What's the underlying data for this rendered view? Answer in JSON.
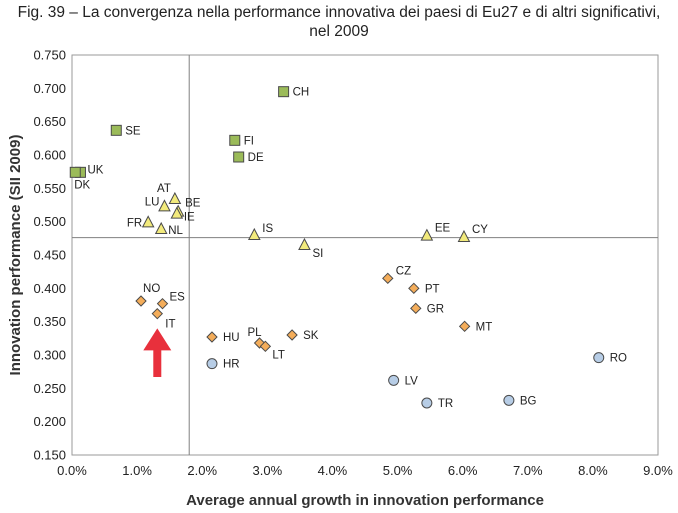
{
  "caption": {
    "line1": "Fig. 39 – La convergenza nella performance innovativa dei paesi di Eu27 e di altri significativi,",
    "line2": "nel 2009"
  },
  "chart_data": {
    "type": "scatter",
    "title": "Fig. 39 – La convergenza nella performance innovativa dei paesi di Eu27 e di altri significativi, nel 2009",
    "xlabel": "Average annual growth in innovation performance",
    "ylabel": "Innovation performance (SII 2009)",
    "xlim": [
      0,
      0.09
    ],
    "ylim": [
      0.15,
      0.75
    ],
    "x_ticks": [
      0,
      0.01,
      0.02,
      0.03,
      0.04,
      0.05,
      0.06,
      0.07,
      0.08,
      0.09
    ],
    "x_tick_labels": [
      "0.0%",
      "1.0%",
      "2.0%",
      "3.0%",
      "4.0%",
      "5.0%",
      "6.0%",
      "7.0%",
      "8.0%",
      "9.0%"
    ],
    "y_ticks": [
      0.15,
      0.2,
      0.25,
      0.3,
      0.35,
      0.4,
      0.45,
      0.5,
      0.55,
      0.6,
      0.65,
      0.7,
      0.75
    ],
    "y_tick_labels": [
      "0.150",
      "0.200",
      "0.250",
      "0.300",
      "0.350",
      "0.400",
      "0.450",
      "0.500",
      "0.550",
      "0.600",
      "0.650",
      "0.700",
      "0.750"
    ],
    "reference_lines": {
      "x": 0.018,
      "y": 0.476
    },
    "grid": false,
    "legend": "none",
    "arrow_annotation": {
      "x": 0.0131,
      "y_from": 0.267,
      "y_to": 0.34,
      "color": "#e8303c"
    },
    "groups": [
      {
        "marker": "square",
        "color": "#9bbb59",
        "points": [
          {
            "label": "CH",
            "x": 0.0325,
            "y": 0.695
          },
          {
            "label": "SE",
            "x": 0.0068,
            "y": 0.637
          },
          {
            "label": "FI",
            "x": 0.025,
            "y": 0.622
          },
          {
            "label": "DE",
            "x": 0.0256,
            "y": 0.597
          },
          {
            "label": "UK",
            "x": 0.0013,
            "y": 0.574
          },
          {
            "label": "DK",
            "x": 0.0005,
            "y": 0.574
          }
        ]
      },
      {
        "marker": "triangle",
        "color": "#f2ea7c",
        "points": [
          {
            "label": "AT",
            "x": 0.0158,
            "y": 0.534
          },
          {
            "label": "LU",
            "x": 0.0142,
            "y": 0.523
          },
          {
            "label": "BE",
            "x": 0.0163,
            "y": 0.515
          },
          {
            "label": "IE",
            "x": 0.0161,
            "y": 0.512
          },
          {
            "label": "FR",
            "x": 0.0117,
            "y": 0.499
          },
          {
            "label": "NL",
            "x": 0.0137,
            "y": 0.489
          },
          {
            "label": "IS",
            "x": 0.028,
            "y": 0.48
          },
          {
            "label": "SI",
            "x": 0.0357,
            "y": 0.465
          },
          {
            "label": "EE",
            "x": 0.0545,
            "y": 0.479
          },
          {
            "label": "CY",
            "x": 0.0602,
            "y": 0.477
          }
        ]
      },
      {
        "marker": "diamond",
        "color": "#f4ad5a",
        "points": [
          {
            "label": "NO",
            "x": 0.0106,
            "y": 0.381
          },
          {
            "label": "ES",
            "x": 0.0139,
            "y": 0.377
          },
          {
            "label": "IT",
            "x": 0.0131,
            "y": 0.362
          },
          {
            "label": "CZ",
            "x": 0.0485,
            "y": 0.415
          },
          {
            "label": "PT",
            "x": 0.0525,
            "y": 0.4
          },
          {
            "label": "GR",
            "x": 0.0528,
            "y": 0.37
          },
          {
            "label": "MT",
            "x": 0.0603,
            "y": 0.343
          },
          {
            "label": "HU",
            "x": 0.0215,
            "y": 0.327
          },
          {
            "label": "PL",
            "x": 0.0288,
            "y": 0.318
          },
          {
            "label": "LT",
            "x": 0.0297,
            "y": 0.313
          },
          {
            "label": "SK",
            "x": 0.0338,
            "y": 0.33
          }
        ]
      },
      {
        "marker": "circle",
        "color": "#b7cde6",
        "points": [
          {
            "label": "HR",
            "x": 0.0215,
            "y": 0.287
          },
          {
            "label": "RO",
            "x": 0.0809,
            "y": 0.296
          },
          {
            "label": "LV",
            "x": 0.0494,
            "y": 0.262
          },
          {
            "label": "TR",
            "x": 0.0545,
            "y": 0.228
          },
          {
            "label": "BG",
            "x": 0.0671,
            "y": 0.232
          }
        ]
      }
    ]
  }
}
